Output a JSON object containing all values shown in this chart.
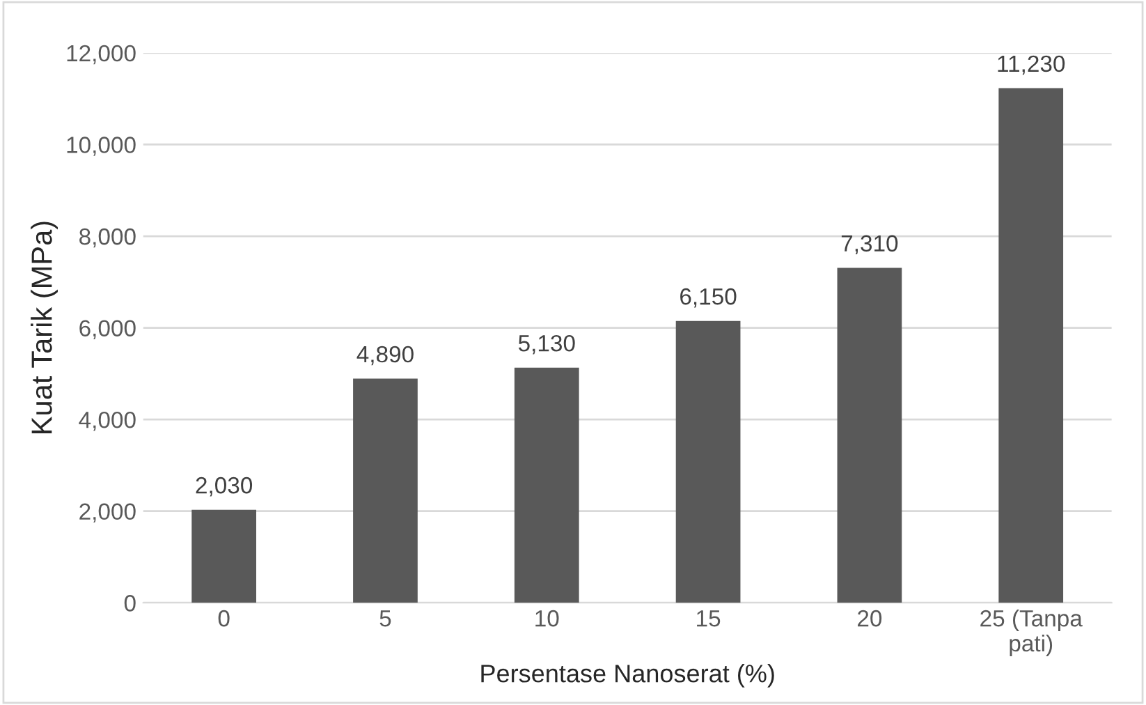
{
  "chart_data": {
    "type": "bar",
    "xlabel": "Persentase Nanoserat (%)",
    "ylabel": "Kuat Tarik (MPa)",
    "categories": [
      "0",
      "5",
      "10",
      "15",
      "20",
      "25 (Tanpa\npati)"
    ],
    "values": [
      2030,
      4890,
      5130,
      6150,
      7310,
      11230
    ],
    "value_labels": [
      "2,030",
      "4,890",
      "5,130",
      "6,150",
      "7,310",
      "11,230"
    ],
    "color": "#595959",
    "ylim": [
      0,
      12000
    ],
    "yticks": [
      0,
      {
        "value": 2000,
        "label": "2,000"
      },
      {
        "value": 4000,
        "label": "4,000"
      },
      {
        "value": 6000,
        "label": "6,000"
      },
      {
        "value": 8000,
        "label": "8,000"
      },
      {
        "value": 10000,
        "label": "10,000"
      },
      {
        "value": 12000,
        "label": "12,000"
      }
    ],
    "grid": "y",
    "legend": false
  }
}
